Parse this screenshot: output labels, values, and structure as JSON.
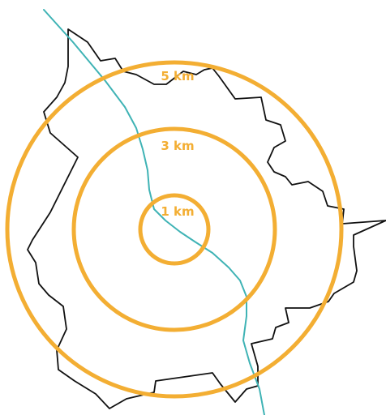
{
  "map": {
    "colors": {
      "boundary": "#111111",
      "river": "#3fb3b5",
      "ring": "#f3ae33",
      "background": "#ffffff"
    },
    "rings": [
      {
        "radius_km": 5,
        "label": "5 km"
      },
      {
        "radius_km": 3,
        "label": "3 km"
      },
      {
        "radius_km": 1,
        "label": "1 km"
      }
    ]
  }
}
